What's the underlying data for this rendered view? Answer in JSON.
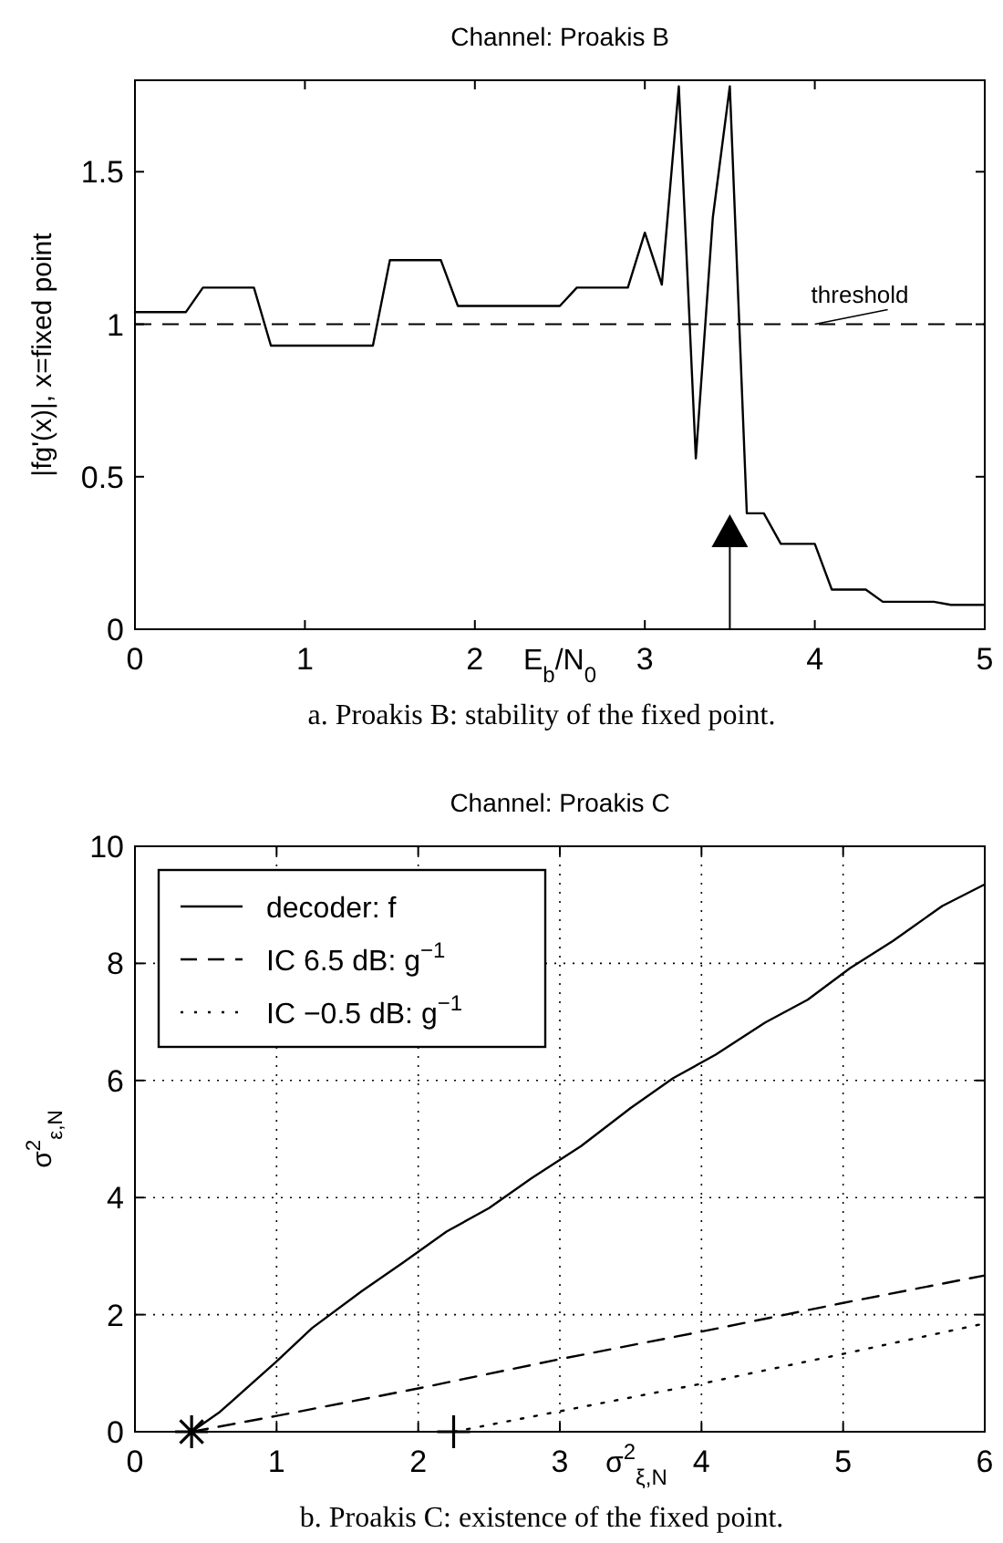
{
  "chart_data": [
    {
      "type": "line",
      "title": "Channel: Proakis B",
      "xlabel": "E$_{b}$/N$_{0}$",
      "ylabel": "|fg'(x)|, x=fixed point",
      "x": [
        0,
        0.3,
        0.4,
        0.7,
        0.8,
        1.4,
        1.5,
        1.8,
        1.9,
        2.5,
        2.6,
        2.9,
        3.0,
        3.1,
        3.2,
        3.3,
        3.4,
        3.5,
        3.6,
        3.7,
        3.8,
        4.0,
        4.1,
        4.3,
        4.4,
        4.7,
        4.8,
        5.0
      ],
      "series": [
        {
          "color": "#000000",
          "values": [
            1.04,
            1.04,
            1.12,
            1.12,
            0.93,
            0.93,
            1.21,
            1.21,
            1.06,
            1.06,
            1.12,
            1.12,
            1.3,
            1.13,
            1.78,
            0.56,
            1.35,
            1.78,
            0.38,
            0.38,
            0.28,
            0.28,
            0.13,
            0.13,
            0.09,
            0.09,
            0.08,
            0.08
          ]
        }
      ],
      "xlim": [
        0,
        5
      ],
      "xticks": [
        0,
        1,
        2,
        3,
        4,
        5
      ],
      "ylim": [
        0,
        1.8
      ],
      "yticks": [
        0,
        0.5,
        1,
        1.5
      ],
      "grid": false,
      "legend": false,
      "line_style": "solid",
      "ref_lines": [
        {
          "axis": "y",
          "value": 1,
          "label": "threshold",
          "line_style": "dashed",
          "color": "#000000"
        }
      ],
      "annotations": [
        "a. Proakis B: stability of the fixed point."
      ]
    },
    {
      "type": "line",
      "title": "Channel: Proakis C",
      "xlabel": "σ$^{2}$$_{ξ,N}$",
      "ylabel": "σ$^{2}$$_{ε,N}$",
      "series": [
        {
          "name": "decoder: f",
          "color": "#000000",
          "line_style": "solid",
          "x": [
            0.4,
            0.6,
            1,
            1.25,
            1.6,
            1.9,
            2.2,
            2.5,
            2.8,
            3.15,
            3.5,
            3.8,
            4.1,
            4.45,
            4.75,
            5.05,
            5.35,
            5.7,
            6.0
          ],
          "values": [
            0,
            0.34,
            1.2,
            1.77,
            2.4,
            2.9,
            3.42,
            3.82,
            4.33,
            4.88,
            5.53,
            6.04,
            6.44,
            6.99,
            7.38,
            7.92,
            8.38,
            8.98,
            9.35
          ]
        },
        {
          "name": "IC 6.5 dB: g$^{−1}$",
          "color": "#000000",
          "line_style": "dashed",
          "x": [
            0.4,
            1,
            2,
            3,
            4,
            5,
            6
          ],
          "values": [
            0,
            0.27,
            0.74,
            1.24,
            1.71,
            2.2,
            2.67
          ]
        },
        {
          "name": "IC −0.5 dB: g$^{−1}$",
          "color": "#000000",
          "line_style": "dotted",
          "x": [
            2.25,
            3,
            4,
            5,
            6
          ],
          "values": [
            0,
            0.35,
            0.82,
            1.33,
            1.85
          ]
        },
        {
          "type": "scatter",
          "marker": "cross",
          "color": "#000000",
          "x": [
            0.4
          ],
          "values": [
            0
          ]
        },
        {
          "type": "scatter",
          "marker": "cross",
          "color": "#000000",
          "x": [
            2.25
          ],
          "values": [
            0
          ]
        }
      ],
      "xlim": [
        0,
        6
      ],
      "xticks": [
        0,
        1,
        2,
        3,
        4,
        5,
        6
      ],
      "ylim": [
        0,
        10
      ],
      "yticks": [
        0,
        2,
        4,
        6,
        8,
        10
      ],
      "grid": true,
      "legend": "top left",
      "marker": "none",
      "annotations": [
        "b. Proakis C: existence of the fixed point."
      ]
    }
  ]
}
